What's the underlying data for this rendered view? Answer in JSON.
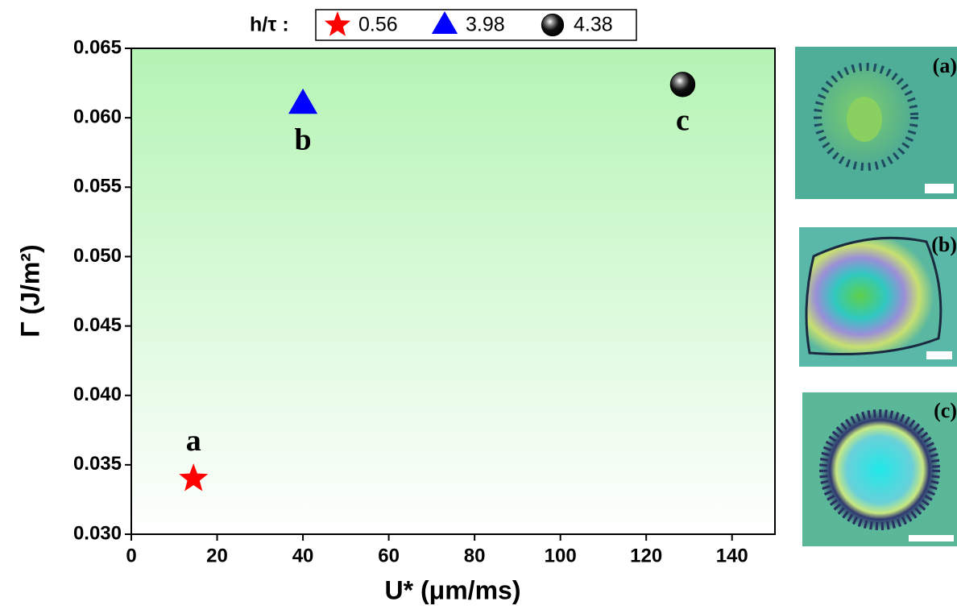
{
  "chart_data": {
    "type": "scatter",
    "xlabel": "U* (μm/ms)",
    "ylabel": "Γ (J/m²)",
    "legend_title": "h/τ :",
    "xlim": [
      0,
      150
    ],
    "xticks": [
      0,
      20,
      40,
      60,
      80,
      100,
      120,
      140
    ],
    "ylim": [
      0.03,
      0.065
    ],
    "yticks": [
      {
        "value": 0.03,
        "label": "0.030"
      },
      0.035,
      {
        "value": 0.04,
        "label": "0.040"
      },
      0.045,
      {
        "value": 0.05,
        "label": "0.050"
      },
      0.055,
      {
        "value": 0.06,
        "label": "0.060"
      },
      0.065
    ],
    "series": [
      {
        "name": "0.56",
        "color": "#ff0000",
        "marker": "star",
        "x": [
          14.5
        ],
        "values": [
          0.034
        ],
        "labels": [
          "a"
        ]
      },
      {
        "name": "3.98",
        "color": "#0000ff",
        "marker": "triangle",
        "x": [
          40
        ],
        "values": [
          0.061
        ],
        "labels": [
          "b"
        ]
      },
      {
        "name": "4.38",
        "color": "#000000",
        "marker": "sphere",
        "x": [
          128.5
        ],
        "values": [
          0.0624
        ],
        "labels": [
          "c"
        ]
      }
    ]
  },
  "insets": [
    {
      "label": "(a)"
    },
    {
      "label": "(b)"
    },
    {
      "label": "(c)"
    }
  ]
}
